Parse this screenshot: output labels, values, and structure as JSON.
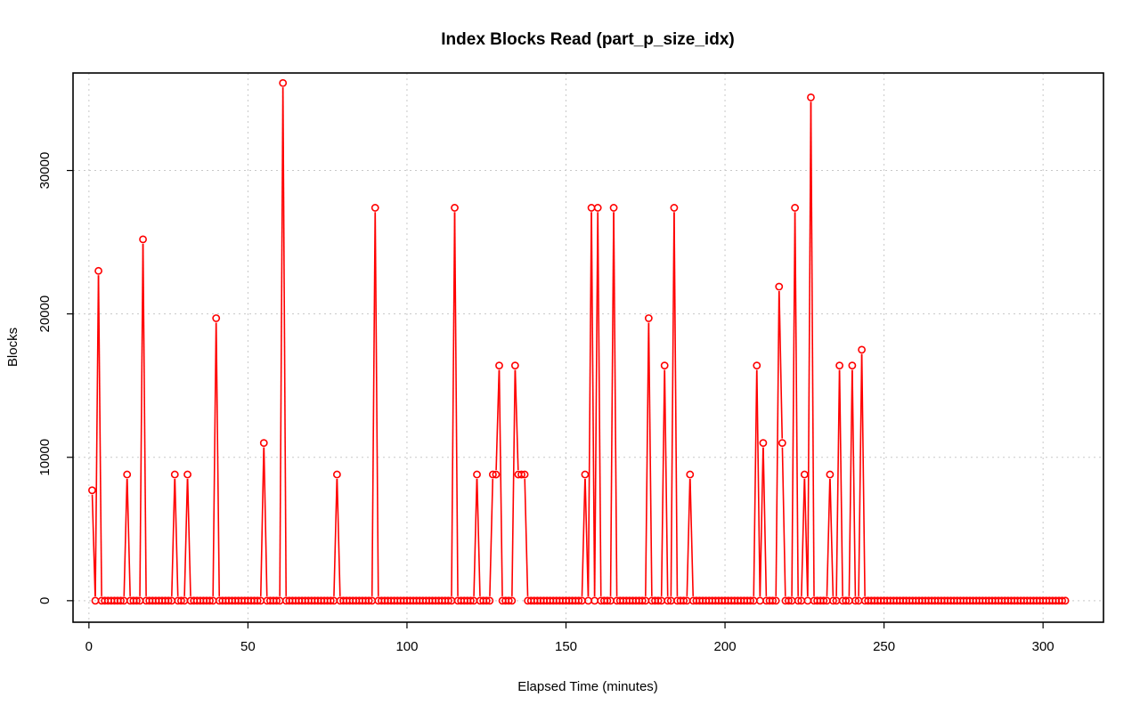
{
  "chart_data": {
    "type": "line",
    "title": "Index Blocks Read (part_p_size_idx)",
    "xlabel": "Elapsed Time (minutes)",
    "ylabel": "Blocks",
    "xlim": [
      -5,
      319
    ],
    "ylim": [
      -1500,
      36800
    ],
    "xticks": [
      0,
      50,
      100,
      150,
      200,
      250,
      300
    ],
    "yticks": [
      0,
      10000,
      20000,
      30000
    ],
    "grid": true,
    "legend": "none",
    "color": "#ff0000",
    "x_start": 1,
    "x_end": 307,
    "baseline_value": 0,
    "points": [
      [
        1,
        7700
      ],
      [
        3,
        23000
      ],
      [
        12,
        8800
      ],
      [
        17,
        25200
      ],
      [
        27,
        8800
      ],
      [
        31,
        8800
      ],
      [
        40,
        19700
      ],
      [
        55,
        11000
      ],
      [
        61,
        36100
      ],
      [
        78,
        8800
      ],
      [
        90,
        27400
      ],
      [
        115,
        27400
      ],
      [
        122,
        8800
      ],
      [
        127,
        8800
      ],
      [
        128,
        8800
      ],
      [
        129,
        16400
      ],
      [
        134,
        16400
      ],
      [
        135,
        8800
      ],
      [
        136,
        8800
      ],
      [
        137,
        8800
      ],
      [
        156,
        8800
      ],
      [
        158,
        27400
      ],
      [
        160,
        27400
      ],
      [
        165,
        27400
      ],
      [
        176,
        19700
      ],
      [
        181,
        16400
      ],
      [
        184,
        27400
      ],
      [
        189,
        8800
      ],
      [
        210,
        16400
      ],
      [
        212,
        11000
      ],
      [
        217,
        21900
      ],
      [
        218,
        11000
      ],
      [
        222,
        27400
      ],
      [
        225,
        8800
      ],
      [
        227,
        35100
      ],
      [
        233,
        8800
      ],
      [
        236,
        16400
      ],
      [
        240,
        16400
      ],
      [
        243,
        17500
      ]
    ]
  }
}
